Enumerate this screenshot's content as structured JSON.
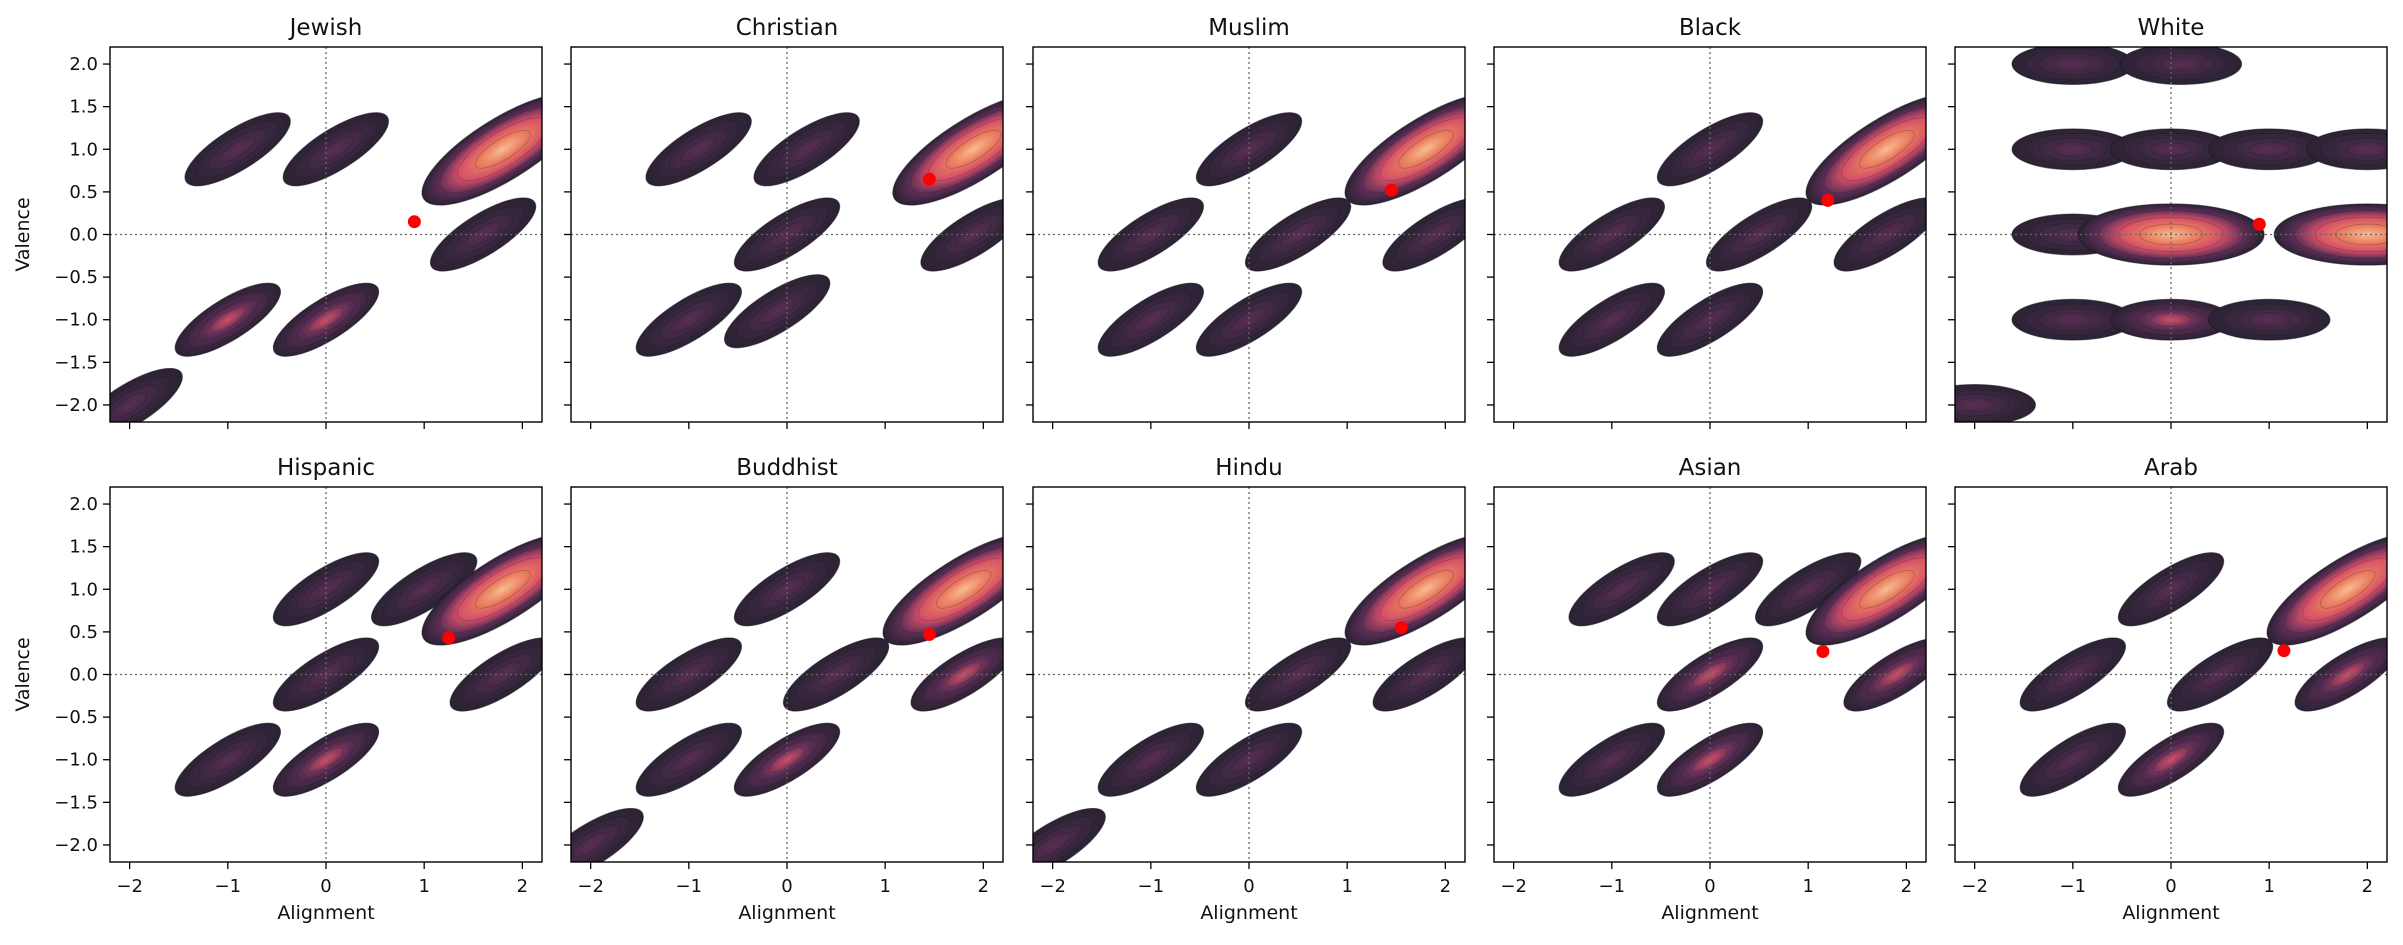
{
  "colors": {
    "blob_low": "#2a2233",
    "blob_mid": "#5a2d55",
    "blob_high": "#d24f68",
    "blob_peak": "#f8bd8d",
    "mean_marker": "#ff0000",
    "axis_frame": "#000000",
    "reference_line": "#666666"
  },
  "chart_data": [
    {
      "type": "contour",
      "title": "Jewish",
      "xlabel": "",
      "ylabel": "Valence",
      "xlim": [
        -2.2,
        2.2
      ],
      "ylim": [
        -2.2,
        2.2
      ],
      "x_ticks": [],
      "y_ticks": [
        "2.0",
        "1.5",
        "1.0",
        "0.5",
        "0.0",
        "-0.5",
        "-1.0",
        "-1.5",
        "-2.0"
      ],
      "mean_point": {
        "x": 0.9,
        "y": 0.15
      },
      "blobs": [
        {
          "x": -0.9,
          "y": 1.0,
          "level": 0.2
        },
        {
          "x": 0.1,
          "y": 1.0,
          "level": 0.2
        },
        {
          "x": 1.8,
          "y": 1.0,
          "level": 1.0
        },
        {
          "x": -1.0,
          "y": -1.0,
          "level": 0.45
        },
        {
          "x": 0.0,
          "y": -1.0,
          "level": 0.45
        },
        {
          "x": 1.6,
          "y": 0.0,
          "level": 0.3
        },
        {
          "x": -2.0,
          "y": -2.0,
          "level": 0.15
        }
      ]
    },
    {
      "type": "contour",
      "title": "Christian",
      "xlabel": "",
      "ylabel": "",
      "xlim": [
        -2.2,
        2.2
      ],
      "ylim": [
        -2.2,
        2.2
      ],
      "x_ticks": [],
      "y_ticks": [],
      "mean_point": {
        "x": 1.45,
        "y": 0.65
      },
      "blobs": [
        {
          "x": -0.9,
          "y": 1.0,
          "level": 0.25
        },
        {
          "x": 0.2,
          "y": 1.0,
          "level": 0.2
        },
        {
          "x": 1.9,
          "y": 1.0,
          "level": 1.0
        },
        {
          "x": 0.0,
          "y": 0.0,
          "level": 0.35
        },
        {
          "x": 1.9,
          "y": 0.0,
          "level": 0.35
        },
        {
          "x": -1.0,
          "y": -1.0,
          "level": 0.25
        },
        {
          "x": -0.1,
          "y": -0.9,
          "level": 0.2
        }
      ]
    },
    {
      "type": "contour",
      "title": "Muslim",
      "xlabel": "",
      "ylabel": "",
      "xlim": [
        -2.2,
        2.2
      ],
      "ylim": [
        -2.2,
        2.2
      ],
      "x_ticks": [],
      "y_ticks": [],
      "mean_point": {
        "x": 1.45,
        "y": 0.52
      },
      "blobs": [
        {
          "x": 0.0,
          "y": 1.0,
          "level": 0.2
        },
        {
          "x": 1.8,
          "y": 1.0,
          "level": 1.0
        },
        {
          "x": -1.0,
          "y": 0.0,
          "level": 0.2
        },
        {
          "x": 0.5,
          "y": 0.0,
          "level": 0.25
        },
        {
          "x": 1.9,
          "y": 0.0,
          "level": 0.35
        },
        {
          "x": -1.0,
          "y": -1.0,
          "level": 0.25
        },
        {
          "x": 0.0,
          "y": -1.0,
          "level": 0.35
        }
      ]
    },
    {
      "type": "contour",
      "title": "Black",
      "xlabel": "",
      "ylabel": "",
      "xlim": [
        -2.2,
        2.2
      ],
      "ylim": [
        -2.2,
        2.2
      ],
      "x_ticks": [],
      "y_ticks": [],
      "mean_point": {
        "x": 1.2,
        "y": 0.4
      },
      "blobs": [
        {
          "x": 0.0,
          "y": 1.0,
          "level": 0.25
        },
        {
          "x": 1.8,
          "y": 1.0,
          "level": 1.0
        },
        {
          "x": -1.0,
          "y": 0.0,
          "level": 0.2
        },
        {
          "x": 0.5,
          "y": 0.0,
          "level": 0.25
        },
        {
          "x": 1.8,
          "y": 0.0,
          "level": 0.35
        },
        {
          "x": -1.0,
          "y": -1.0,
          "level": 0.25
        },
        {
          "x": 0.0,
          "y": -1.0,
          "level": 0.35
        }
      ]
    },
    {
      "type": "contour",
      "title": "White",
      "xlabel": "",
      "ylabel": "",
      "xlim": [
        -2.2,
        2.2
      ],
      "ylim": [
        -2.2,
        2.2
      ],
      "x_ticks": [],
      "y_ticks": [],
      "mean_point": {
        "x": 0.9,
        "y": 0.12
      },
      "blobs": [
        {
          "x": -1.0,
          "y": 2.0,
          "level": 0.3
        },
        {
          "x": 0.1,
          "y": 2.0,
          "level": 0.25
        },
        {
          "x": -1.0,
          "y": 1.0,
          "level": 0.3
        },
        {
          "x": 0.0,
          "y": 1.0,
          "level": 0.3
        },
        {
          "x": 1.0,
          "y": 1.0,
          "level": 0.3
        },
        {
          "x": 2.0,
          "y": 1.0,
          "level": 0.35
        },
        {
          "x": -1.0,
          "y": 0.0,
          "level": 0.35
        },
        {
          "x": 0.0,
          "y": 0.0,
          "level": 1.0
        },
        {
          "x": 2.0,
          "y": 0.0,
          "level": 1.0
        },
        {
          "x": -1.0,
          "y": -1.0,
          "level": 0.3
        },
        {
          "x": 0.0,
          "y": -1.0,
          "level": 0.4
        },
        {
          "x": 1.0,
          "y": -1.0,
          "level": 0.3
        },
        {
          "x": -2.0,
          "y": -2.0,
          "level": 0.25
        }
      ]
    },
    {
      "type": "contour",
      "title": "Hispanic",
      "xlabel": "Alignment",
      "ylabel": "Valence",
      "xlim": [
        -2.2,
        2.2
      ],
      "ylim": [
        -2.2,
        2.2
      ],
      "x_ticks": [
        "-2",
        "-1",
        "0",
        "1",
        "2"
      ],
      "y_ticks": [
        "2.0",
        "1.5",
        "1.0",
        "0.5",
        "0.0",
        "-0.5",
        "-1.0",
        "-1.5",
        "-2.0"
      ],
      "mean_point": {
        "x": 1.25,
        "y": 0.43
      },
      "blobs": [
        {
          "x": 0.0,
          "y": 1.0,
          "level": 0.2
        },
        {
          "x": 1.0,
          "y": 1.0,
          "level": 0.3
        },
        {
          "x": 1.8,
          "y": 1.0,
          "level": 1.0
        },
        {
          "x": 0.0,
          "y": 0.0,
          "level": 0.3
        },
        {
          "x": 1.8,
          "y": 0.0,
          "level": 0.35
        },
        {
          "x": -1.0,
          "y": -1.0,
          "level": 0.3
        },
        {
          "x": 0.0,
          "y": -1.0,
          "level": 0.45
        }
      ]
    },
    {
      "type": "contour",
      "title": "Buddhist",
      "xlabel": "Alignment",
      "ylabel": "",
      "xlim": [
        -2.2,
        2.2
      ],
      "ylim": [
        -2.2,
        2.2
      ],
      "x_ticks": [
        "-2",
        "-1",
        "0",
        "1",
        "2"
      ],
      "y_ticks": [],
      "mean_point": {
        "x": 1.45,
        "y": 0.47
      },
      "blobs": [
        {
          "x": 0.0,
          "y": 1.0,
          "level": 0.2
        },
        {
          "x": 1.8,
          "y": 1.0,
          "level": 1.0
        },
        {
          "x": -1.0,
          "y": 0.0,
          "level": 0.2
        },
        {
          "x": 0.5,
          "y": 0.0,
          "level": 0.3
        },
        {
          "x": 1.8,
          "y": 0.0,
          "level": 0.4
        },
        {
          "x": -1.0,
          "y": -1.0,
          "level": 0.3
        },
        {
          "x": 0.0,
          "y": -1.0,
          "level": 0.4
        },
        {
          "x": -2.0,
          "y": -2.0,
          "level": 0.15
        }
      ]
    },
    {
      "type": "contour",
      "title": "Hindu",
      "xlabel": "Alignment",
      "ylabel": "",
      "xlim": [
        -2.2,
        2.2
      ],
      "ylim": [
        -2.2,
        2.2
      ],
      "x_ticks": [
        "-2",
        "-1",
        "0",
        "1",
        "2"
      ],
      "y_ticks": [],
      "mean_point": {
        "x": 1.55,
        "y": 0.55
      },
      "blobs": [
        {
          "x": 1.8,
          "y": 1.0,
          "level": 1.0
        },
        {
          "x": 0.5,
          "y": 0.0,
          "level": 0.2
        },
        {
          "x": 1.8,
          "y": 0.0,
          "level": 0.3
        },
        {
          "x": -1.0,
          "y": -1.0,
          "level": 0.2
        },
        {
          "x": 0.0,
          "y": -1.0,
          "level": 0.25
        },
        {
          "x": -2.0,
          "y": -2.0,
          "level": 0.15
        }
      ]
    },
    {
      "type": "contour",
      "title": "Asian",
      "xlabel": "Alignment",
      "ylabel": "",
      "xlim": [
        -2.2,
        2.2
      ],
      "ylim": [
        -2.2,
        2.2
      ],
      "x_ticks": [
        "-2",
        "-1",
        "0",
        "1",
        "2"
      ],
      "y_ticks": [],
      "mean_point": {
        "x": 1.15,
        "y": 0.27
      },
      "blobs": [
        {
          "x": -0.9,
          "y": 1.0,
          "level": 0.25
        },
        {
          "x": 0.0,
          "y": 1.0,
          "level": 0.25
        },
        {
          "x": 1.0,
          "y": 1.0,
          "level": 0.3
        },
        {
          "x": 1.8,
          "y": 1.0,
          "level": 1.0
        },
        {
          "x": 0.0,
          "y": 0.0,
          "level": 0.5
        },
        {
          "x": 1.9,
          "y": 0.0,
          "level": 0.45
        },
        {
          "x": -1.0,
          "y": -1.0,
          "level": 0.3
        },
        {
          "x": 0.0,
          "y": -1.0,
          "level": 0.7
        }
      ]
    },
    {
      "type": "contour",
      "title": "Arab",
      "xlabel": "Alignment",
      "ylabel": "",
      "xlim": [
        -2.2,
        2.2
      ],
      "ylim": [
        -2.2,
        2.2
      ],
      "x_ticks": [
        "-2",
        "-1",
        "0",
        "1",
        "2"
      ],
      "y_ticks": [],
      "mean_point": {
        "x": 1.15,
        "y": 0.28
      },
      "blobs": [
        {
          "x": 0.0,
          "y": 1.0,
          "level": 0.2
        },
        {
          "x": 1.8,
          "y": 1.0,
          "level": 1.0
        },
        {
          "x": -1.0,
          "y": 0.0,
          "level": 0.25
        },
        {
          "x": 0.5,
          "y": 0.0,
          "level": 0.3
        },
        {
          "x": 1.8,
          "y": 0.0,
          "level": 0.4
        },
        {
          "x": -1.0,
          "y": -1.0,
          "level": 0.3
        },
        {
          "x": 0.0,
          "y": -1.0,
          "level": 0.4
        }
      ]
    }
  ]
}
